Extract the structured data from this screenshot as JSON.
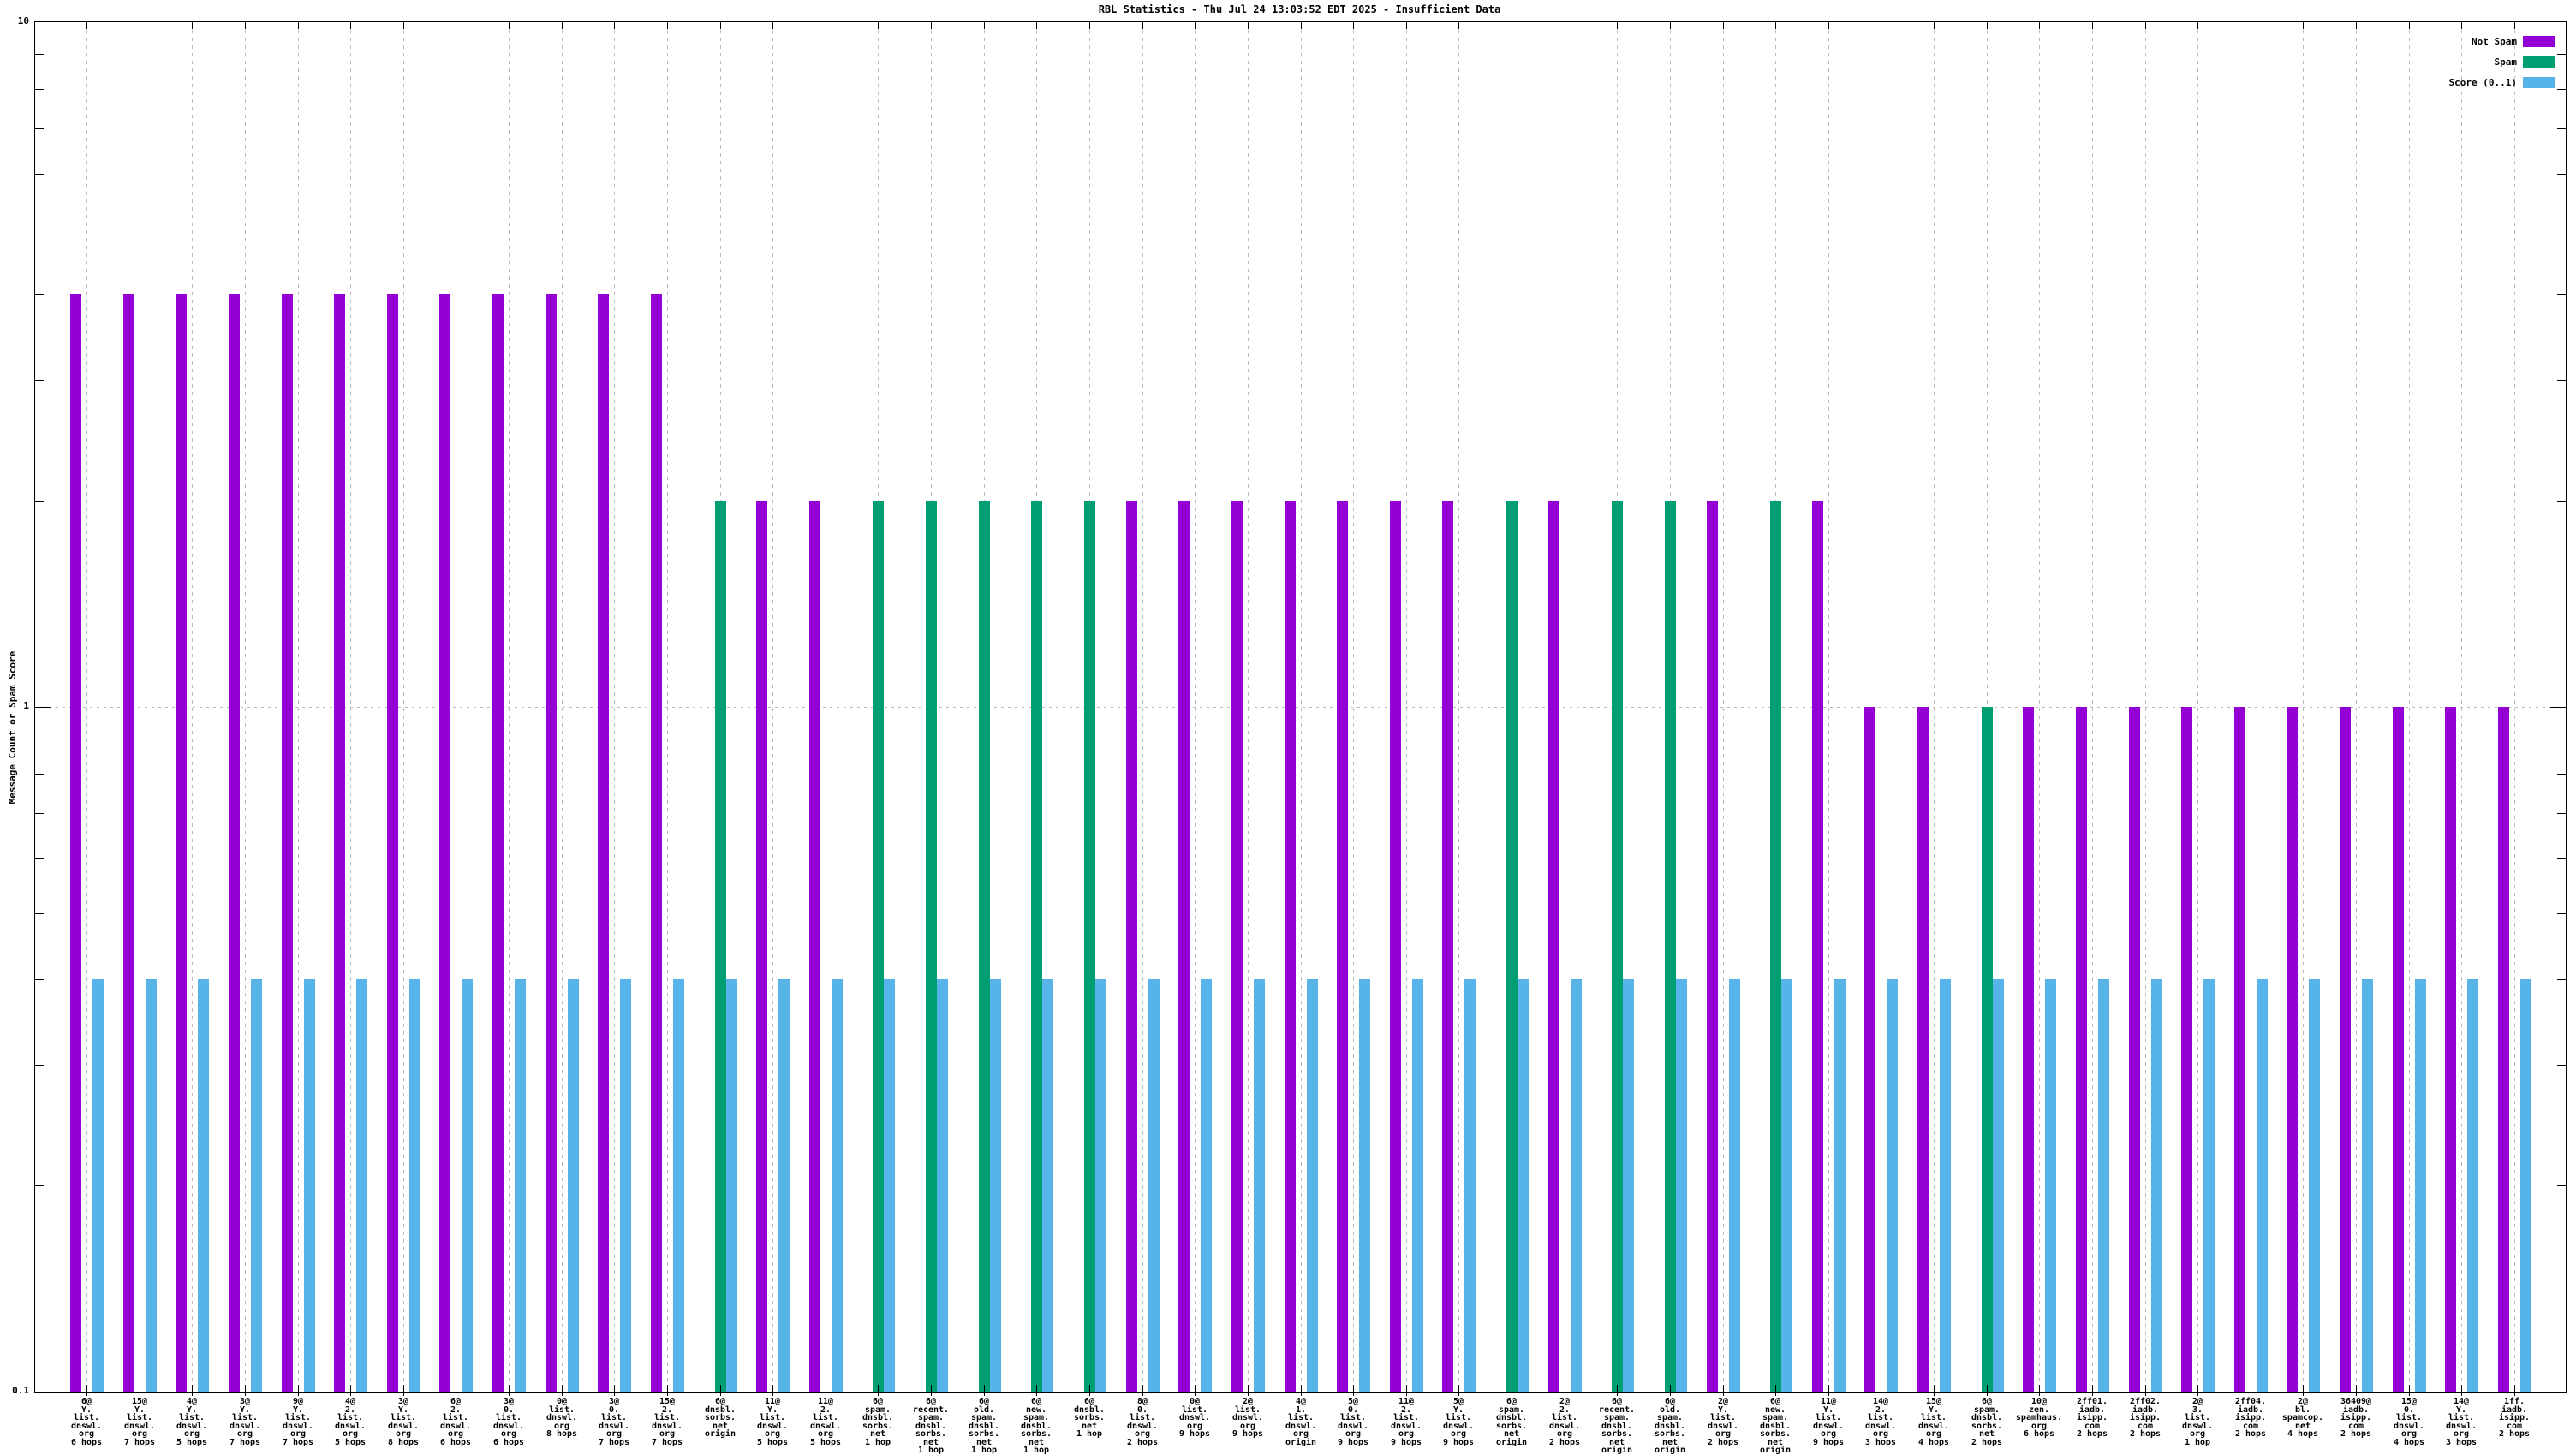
{
  "title": "RBL Statistics - Thu Jul 24 13:03:52 EDT 2025 - Insufficient Data",
  "y_axis": {
    "label": "Message Count or Spam Score",
    "scale": "log",
    "major_ticks": [
      {
        "value": 0.1,
        "label": "0.1"
      },
      {
        "value": 1,
        "label": "1"
      },
      {
        "value": 10,
        "label": "10"
      }
    ]
  },
  "chart_data": {
    "type": "bar",
    "y_scale": "log",
    "ylim": [
      0.1,
      10
    ],
    "grid": true,
    "legend_position": "top-right",
    "categories": [
      [
        "6@",
        "Y.",
        "list.",
        "dnswl.",
        "org",
        "6 hops"
      ],
      [
        "15@",
        "Y.",
        "list.",
        "dnswl.",
        "org",
        "7 hops"
      ],
      [
        "4@",
        "Y.",
        "list.",
        "dnswl.",
        "org",
        "5 hops"
      ],
      [
        "3@",
        "Y.",
        "list.",
        "dnswl.",
        "org",
        "7 hops"
      ],
      [
        "9@",
        "Y.",
        "list.",
        "dnswl.",
        "org",
        "7 hops"
      ],
      [
        "4@",
        "2.",
        "list.",
        "dnswl.",
        "org",
        "5 hops"
      ],
      [
        "3@",
        "Y.",
        "list.",
        "dnswl.",
        "org",
        "8 hops"
      ],
      [
        "6@",
        "2.",
        "list.",
        "dnswl.",
        "org",
        "6 hops"
      ],
      [
        "3@",
        "0.",
        "list.",
        "dnswl.",
        "org",
        "6 hops"
      ],
      [
        "0@",
        "list.",
        "dnswl.",
        "org",
        "8 hops"
      ],
      [
        "3@",
        "0.",
        "list.",
        "dnswl.",
        "org",
        "7 hops"
      ],
      [
        "15@",
        "2.",
        "list.",
        "dnswl.",
        "org",
        "7 hops"
      ],
      [
        "6@",
        "dnsbl.",
        "sorbs.",
        "net",
        "origin"
      ],
      [
        "11@",
        "Y.",
        "list.",
        "dnswl.",
        "org",
        "5 hops"
      ],
      [
        "11@",
        "2.",
        "list.",
        "dnswl.",
        "org",
        "5 hops"
      ],
      [
        "6@",
        "spam.",
        "dnsbl.",
        "sorbs.",
        "net",
        "1 hop"
      ],
      [
        "6@",
        "recent.",
        "spam.",
        "dnsbl.",
        "sorbs.",
        "net",
        "1 hop"
      ],
      [
        "6@",
        "old.",
        "spam.",
        "dnsbl.",
        "sorbs.",
        "net",
        "1 hop"
      ],
      [
        "6@",
        "new.",
        "spam.",
        "dnsbl.",
        "sorbs.",
        "net",
        "1 hop"
      ],
      [
        "6@",
        "dnsbl.",
        "sorbs.",
        "net",
        "1 hop"
      ],
      [
        "8@",
        "0.",
        "list.",
        "dnswl.",
        "org",
        "2 hops"
      ],
      [
        "0@",
        "list.",
        "dnswl.",
        "org",
        "9 hops"
      ],
      [
        "2@",
        "list.",
        "dnswl.",
        "org",
        "9 hops"
      ],
      [
        "4@",
        "1.",
        "list.",
        "dnswl.",
        "org",
        "origin"
      ],
      [
        "5@",
        "0.",
        "list.",
        "dnswl.",
        "org",
        "9 hops"
      ],
      [
        "11@",
        "2.",
        "list.",
        "dnswl.",
        "org",
        "9 hops"
      ],
      [
        "5@",
        "Y.",
        "list.",
        "dnswl.",
        "org",
        "9 hops"
      ],
      [
        "6@",
        "spam.",
        "dnsbl.",
        "sorbs.",
        "net",
        "origin"
      ],
      [
        "2@",
        "2.",
        "list.",
        "dnswl.",
        "org",
        "2 hops"
      ],
      [
        "6@",
        "recent.",
        "spam.",
        "dnsbl.",
        "sorbs.",
        "net",
        "origin"
      ],
      [
        "6@",
        "old.",
        "spam.",
        "dnsbl.",
        "sorbs.",
        "net",
        "origin"
      ],
      [
        "2@",
        "Y.",
        "list.",
        "dnswl.",
        "org",
        "2 hops"
      ],
      [
        "6@",
        "new.",
        "spam.",
        "dnsbl.",
        "sorbs.",
        "net",
        "origin"
      ],
      [
        "11@",
        "Y.",
        "list.",
        "dnswl.",
        "org",
        "9 hops"
      ],
      [
        "14@",
        "2.",
        "list.",
        "dnswl.",
        "org",
        "3 hops"
      ],
      [
        "15@",
        "Y.",
        "list.",
        "dnswl.",
        "org",
        "4 hops"
      ],
      [
        "6@",
        "spam.",
        "dnsbl.",
        "sorbs.",
        "net",
        "2 hops"
      ],
      [
        "10@",
        "zen.",
        "spamhaus.",
        "org",
        "6 hops"
      ],
      [
        "2ff01.",
        "iadb.",
        "isipp.",
        "com",
        "2 hops"
      ],
      [
        "2ff02.",
        "iadb.",
        "isipp.",
        "com",
        "2 hops"
      ],
      [
        "2@",
        "3.",
        "list.",
        "dnswl.",
        "org",
        "1 hop"
      ],
      [
        "2ff04.",
        "iadb.",
        "isipp.",
        "com",
        "2 hops"
      ],
      [
        "2@",
        "bl.",
        "spamcop.",
        "net",
        "4 hops"
      ],
      [
        "36409@",
        "iadb.",
        "isipp.",
        "com",
        "2 hops"
      ],
      [
        "15@",
        "0.",
        "list.",
        "dnswl.",
        "org",
        "4 hops"
      ],
      [
        "14@",
        "Y.",
        "list.",
        "dnswl.",
        "org",
        "3 hops"
      ],
      [
        "1ff.",
        "iadb.",
        "isipp.",
        "com",
        "2 hops"
      ]
    ],
    "series": [
      {
        "name": "Not Spam",
        "color": "#9400d3",
        "values": [
          4,
          4,
          4,
          4,
          4,
          4,
          4,
          4,
          4,
          4,
          4,
          4,
          null,
          2,
          2,
          null,
          null,
          null,
          null,
          null,
          2,
          2,
          2,
          2,
          2,
          2,
          2,
          null,
          2,
          null,
          null,
          2,
          null,
          2,
          1,
          1,
          null,
          1,
          1,
          1,
          1,
          1,
          1,
          1,
          1,
          1,
          1
        ]
      },
      {
        "name": "Spam",
        "color": "#009e73",
        "values": [
          null,
          null,
          null,
          null,
          null,
          null,
          null,
          null,
          null,
          null,
          null,
          null,
          2,
          null,
          null,
          2,
          2,
          2,
          2,
          2,
          null,
          null,
          null,
          null,
          null,
          null,
          null,
          2,
          null,
          2,
          2,
          null,
          2,
          null,
          null,
          null,
          1,
          null,
          null,
          null,
          null,
          null,
          null,
          null,
          null,
          null,
          null
        ]
      },
      {
        "name": "Score (0..1)",
        "color": "#56b4e9",
        "values": [
          0.4,
          0.4,
          0.4,
          0.4,
          0.4,
          0.4,
          0.4,
          0.4,
          0.4,
          0.4,
          0.4,
          0.4,
          0.4,
          0.4,
          0.4,
          0.4,
          0.4,
          0.4,
          0.4,
          0.4,
          0.4,
          0.4,
          0.4,
          0.4,
          0.4,
          0.4,
          0.4,
          0.4,
          0.4,
          0.4,
          0.4,
          0.4,
          0.4,
          0.4,
          0.4,
          0.4,
          0.4,
          0.4,
          0.4,
          0.4,
          0.4,
          0.4,
          0.4,
          0.4,
          0.4,
          0.4,
          0.4
        ]
      }
    ]
  }
}
